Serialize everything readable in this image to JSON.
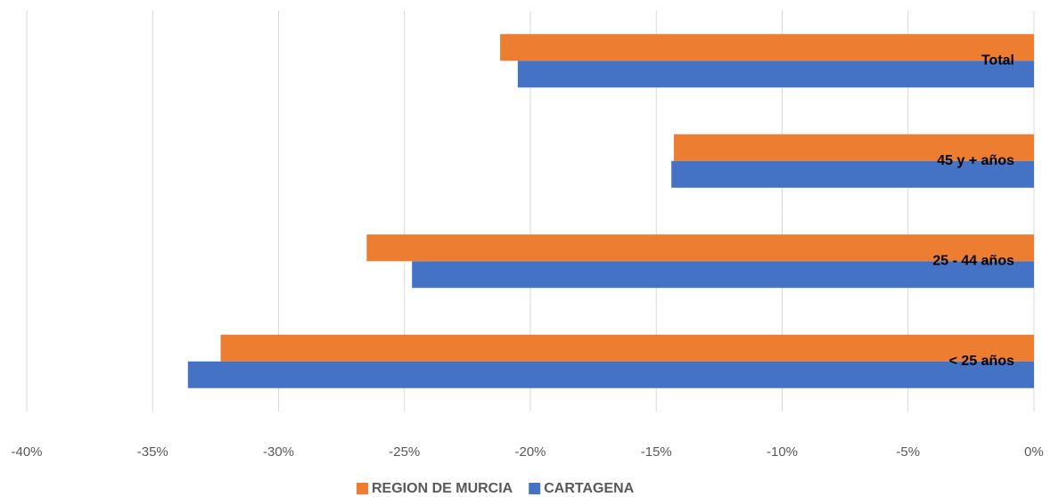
{
  "chart_data": {
    "type": "hbar",
    "categories": [
      "Total",
      "45 y + años",
      "25 - 44 años",
      "< 25 años"
    ],
    "series": [
      {
        "name": "REGION DE MURCIA",
        "color": "#ed7d31",
        "values": [
          -21.2,
          -14.3,
          -26.5,
          -32.3
        ]
      },
      {
        "name": "CARTAGENA",
        "color": "#4472c4",
        "values": [
          -20.5,
          -14.4,
          -24.7,
          -33.6
        ]
      }
    ],
    "xlim": [
      -40,
      0
    ],
    "xticks": [
      {
        "value": -40,
        "label": "-40%"
      },
      {
        "value": -35,
        "label": "-35%"
      },
      {
        "value": -30,
        "label": "-30%"
      },
      {
        "value": -25,
        "label": "-25%"
      },
      {
        "value": -20,
        "label": "-20%"
      },
      {
        "value": -15,
        "label": "-15%"
      },
      {
        "value": -10,
        "label": "-10%"
      },
      {
        "value": -5,
        "label": "-5%"
      },
      {
        "value": 0,
        "label": "0%"
      }
    ],
    "grid": true,
    "legend": "bottom"
  }
}
